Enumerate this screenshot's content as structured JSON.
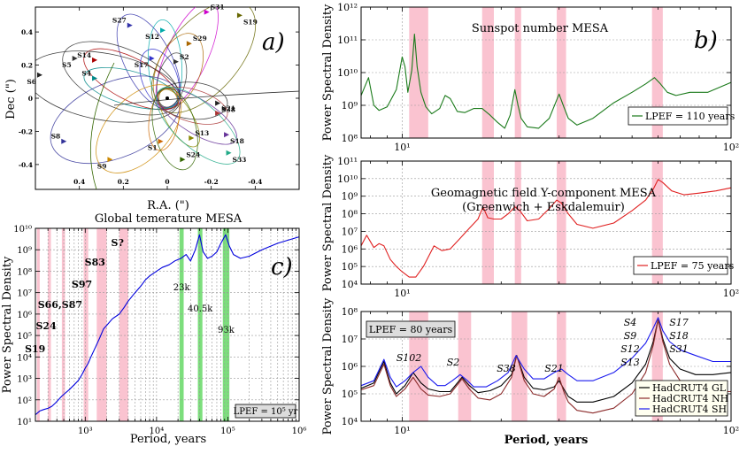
{
  "figure": {
    "description_labels": [
      "a)",
      "b)",
      "c)"
    ]
  },
  "chart_data": [
    {
      "id": "a",
      "type": "scatter",
      "title": "",
      "panel_label": "a)",
      "xlabel": "R.A. (\")",
      "ylabel": "Dec (\")",
      "xlim": [
        0.6,
        -0.6
      ],
      "ylim": [
        -0.55,
        0.55
      ],
      "xticks": [
        "0.4",
        "0.2",
        "0",
        "-0.2",
        "-0.4"
      ],
      "xtick_values": [
        0.4,
        0.2,
        0,
        -0.2,
        -0.4
      ],
      "yticks": [
        "0.4",
        "0.2",
        "0",
        "-0.2",
        "-0.4"
      ],
      "ytick_values": [
        0.4,
        0.2,
        0,
        -0.2,
        -0.4
      ],
      "stars": [
        {
          "name": "S31",
          "ra": -0.18,
          "dec": 0.52,
          "color": "#cc00cc"
        },
        {
          "name": "S19",
          "ra": -0.33,
          "dec": 0.5,
          "color": "#666600"
        },
        {
          "name": "S27",
          "ra": 0.17,
          "dec": 0.44,
          "color": "#3333aa"
        },
        {
          "name": "S12",
          "ra": 0.02,
          "dec": 0.41,
          "color": "#00aaaa"
        },
        {
          "name": "S29",
          "ra": -0.1,
          "dec": 0.33,
          "color": "#aa6600"
        },
        {
          "name": "S5",
          "ra": 0.42,
          "dec": 0.24,
          "color": "#333333"
        },
        {
          "name": "S14",
          "ra": 0.33,
          "dec": 0.23,
          "color": "#aa0000"
        },
        {
          "name": "S17",
          "ra": 0.07,
          "dec": 0.24,
          "color": "#3333cc"
        },
        {
          "name": "S2",
          "ra": -0.04,
          "dec": 0.22,
          "color": "#333333"
        },
        {
          "name": "S6",
          "ra": 0.58,
          "dec": 0.14,
          "color": "#222222"
        },
        {
          "name": "S4",
          "ra": 0.33,
          "dec": 0.12,
          "color": "#008888"
        },
        {
          "name": "S38",
          "ra": -0.23,
          "dec": -0.03,
          "color": "#222222"
        },
        {
          "name": "S21",
          "ra": -0.23,
          "dec": -0.09,
          "color": "#aa3333"
        },
        {
          "name": "S18",
          "ra": -0.27,
          "dec": -0.22,
          "color": "#663399"
        },
        {
          "name": "S8",
          "ra": 0.47,
          "dec": -0.26,
          "color": "#333399"
        },
        {
          "name": "S1",
          "ra": 0.03,
          "dec": -0.26,
          "color": "#cc6600"
        },
        {
          "name": "S13",
          "ra": -0.11,
          "dec": -0.24,
          "color": "#888800"
        },
        {
          "name": "S9",
          "ra": 0.26,
          "dec": -0.37,
          "color": "#cc8800"
        },
        {
          "name": "S24",
          "ra": -0.07,
          "dec": -0.37,
          "color": "#336600"
        },
        {
          "name": "S33",
          "ra": -0.28,
          "dec": -0.33,
          "color": "#22aa88"
        }
      ]
    },
    {
      "id": "b1",
      "type": "line",
      "title": "Sunspot number MESA",
      "panel_label": "b)",
      "xlabel": "",
      "ylabel": "Power Spectral Density",
      "xscale": "log",
      "yscale": "log",
      "xlim": [
        7.5,
        100
      ],
      "ylim": [
        100000000.0,
        1000000000000.0
      ],
      "xticks": [
        "10¹",
        "10²"
      ],
      "yticks": [
        "10⁸",
        "10⁹",
        "10¹⁰",
        "10¹¹",
        "10¹²"
      ],
      "legend": "LPEF = 110 years",
      "legend_location": "bottom-right",
      "shaded_periods": [
        [
          10.5,
          12.0
        ],
        [
          17.5,
          19.0
        ],
        [
          22.0,
          23.0
        ],
        [
          29.5,
          31.5
        ],
        [
          57.5,
          62.0
        ]
      ],
      "series": [
        {
          "name": "Sunspot number MESA",
          "color": "#1a7a1a",
          "x": [
            7.5,
            7.9,
            8.2,
            8.5,
            9.0,
            9.6,
            10.0,
            10.2,
            10.4,
            10.7,
            10.9,
            11.1,
            11.4,
            11.8,
            12.3,
            13.0,
            13.5,
            14.0,
            14.7,
            15.5,
            16.5,
            17.5,
            18.5,
            19.5,
            20.5,
            21.3,
            22.0,
            22.5,
            23.0,
            24.0,
            26.0,
            28.0,
            30.0,
            31.0,
            32.0,
            34.0,
            38.0,
            44.0,
            50.0,
            55.0,
            58.5,
            61.0,
            64.0,
            68.0,
            75.0,
            85.0,
            100.0
          ],
          "y": [
            2000000000.0,
            7000000000.0,
            1000000000.0,
            700000000.0,
            900000000.0,
            3000000000.0,
            30000000000.0,
            15000000000.0,
            2500000000.0,
            12000000000.0,
            150000000000.0,
            15000000000.0,
            2500000000.0,
            900000000.0,
            550000000.0,
            800000000.0,
            2000000000.0,
            1600000000.0,
            650000000.0,
            600000000.0,
            800000000.0,
            800000000.0,
            500000000.0,
            300000000.0,
            200000000.0,
            500000000.0,
            3000000000.0,
            1000000000.0,
            400000000.0,
            220000000.0,
            200000000.0,
            400000000.0,
            2200000000.0,
            900000000.0,
            400000000.0,
            250000000.0,
            400000000.0,
            1200000000.0,
            2500000000.0,
            4500000000.0,
            7000000000.0,
            4500000000.0,
            2500000000.0,
            2000000000.0,
            2500000000.0,
            2500000000.0,
            5000000000.0
          ]
        }
      ]
    },
    {
      "id": "b2",
      "type": "line",
      "title": "Geomagnetic field Y-component MESA",
      "subtitle": "(Greenwich + Eskdalemuir)",
      "xlabel": "",
      "ylabel": "Power Spectral Density",
      "xscale": "log",
      "yscale": "log",
      "xlim": [
        7.5,
        100
      ],
      "ylim": [
        10000.0,
        100000000000.0
      ],
      "xticks": [
        "10¹",
        "10²"
      ],
      "yticks": [
        "10⁴",
        "10⁵",
        "10⁶",
        "10⁷",
        "10⁸",
        "10⁹",
        "10¹⁰",
        "10¹¹"
      ],
      "legend": "LPEF = 75 years",
      "legend_location": "bottom-right",
      "shaded_periods": [
        [
          17.5,
          19.0
        ],
        [
          22.0,
          23.0
        ],
        [
          29.5,
          31.5
        ],
        [
          57.5,
          62.0
        ]
      ],
      "series": [
        {
          "name": "Geomagnetic field Y-component MESA",
          "color": "#e02020",
          "x": [
            7.5,
            7.8,
            8.2,
            8.5,
            8.8,
            9.2,
            9.6,
            10.0,
            10.5,
            11.0,
            11.6,
            12.5,
            13.2,
            14.0,
            15.0,
            16.0,
            17.0,
            17.6,
            18.2,
            19.0,
            20.0,
            21.0,
            22.0,
            22.8,
            24.0,
            26.0,
            28.0,
            29.5,
            30.5,
            32.0,
            34.0,
            38.0,
            44.0,
            50.0,
            55.0,
            58.0,
            60.0,
            62.0,
            66.0,
            72.0,
            80.0,
            90.0,
            100.0
          ],
          "y": [
            1500000.0,
            6000000.0,
            1200000.0,
            2000000.0,
            1500000.0,
            250000.0,
            100000.0,
            50000.0,
            25000.0,
            25000.0,
            100000.0,
            1500000.0,
            800000.0,
            1000000.0,
            4000000.0,
            15000000.0,
            50000000.0,
            250000000.0,
            60000000.0,
            50000000.0,
            50000000.0,
            100000000.0,
            250000000.0,
            150000000.0,
            40000000.0,
            50000000.0,
            200000000.0,
            600000000.0,
            400000000.0,
            100000000.0,
            25000000.0,
            15000000.0,
            30000000.0,
            150000000.0,
            600000000.0,
            2500000000.0,
            9000000000.0,
            6000000000.0,
            2000000000.0,
            1200000000.0,
            1500000000.0,
            2000000000.0,
            3000000000.0
          ]
        }
      ]
    },
    {
      "id": "b3",
      "type": "line",
      "title": "",
      "xlabel": "Period, years",
      "ylabel": "Power Spectral Density",
      "xscale": "log",
      "yscale": "log",
      "xlim": [
        7.5,
        100
      ],
      "ylim": [
        10000.0,
        100000000.0
      ],
      "xticks": [
        "10¹",
        "10²"
      ],
      "yticks": [
        "10⁴",
        "10⁵",
        "10⁶",
        "10⁷",
        "10⁸"
      ],
      "legend_box": "LPEF = 80 years",
      "legend_location": "bottom-right",
      "annotations": [
        "S102",
        "S2",
        "S38",
        "S21",
        "S4",
        "S9",
        "S12",
        "S13",
        "S17",
        "S18",
        "S31"
      ],
      "shaded_periods": [
        [
          10.5,
          12.0
        ],
        [
          14.8,
          16.2
        ],
        [
          21.5,
          24.0
        ],
        [
          29.5,
          31.5
        ],
        [
          57.5,
          62.0
        ]
      ],
      "series": [
        {
          "name": "HadCRUT4 GL",
          "color": "#000000",
          "x": [
            7.5,
            8.2,
            8.8,
            9.2,
            9.6,
            10.2,
            10.8,
            11.4,
            12.0,
            13.0,
            14.0,
            15.2,
            16.0,
            17.0,
            18.5,
            20.0,
            21.5,
            22.3,
            23.5,
            25.0,
            27.0,
            29.0,
            30.0,
            31.0,
            32.0,
            34.0,
            38.0,
            44.0,
            50.0,
            55.0,
            58.0,
            60.0,
            62.0,
            65.0,
            70.0,
            78.0,
            88.0,
            100.0
          ],
          "y": [
            160000.0,
            250000.0,
            1500000.0,
            250000.0,
            100000.0,
            200000.0,
            600000.0,
            250000.0,
            150000.0,
            120000.0,
            120000.0,
            400000.0,
            200000.0,
            110000.0,
            130000.0,
            200000.0,
            500000.0,
            2500000.0,
            400000.0,
            160000.0,
            140000.0,
            180000.0,
            300000.0,
            150000.0,
            80000.0,
            50000.0,
            50000.0,
            80000.0,
            250000.0,
            1200000.0,
            8000000.0,
            50000000.0,
            10000000.0,
            2000000.0,
            800000.0,
            500000.0,
            500000.0,
            600000.0
          ]
        },
        {
          "name": "HadCRUT4 NH",
          "color": "#8b2a2a",
          "x": [
            7.5,
            8.2,
            8.8,
            9.2,
            9.6,
            10.2,
            10.8,
            11.4,
            12.0,
            13.0,
            14.0,
            15.2,
            16.0,
            17.0,
            18.5,
            20.0,
            21.5,
            22.3,
            23.5,
            25.0,
            27.0,
            29.0,
            30.0,
            31.0,
            32.0,
            34.0,
            38.0,
            44.0,
            50.0,
            55.0,
            58.0,
            60.0,
            62.0,
            65.0,
            70.0,
            78.0,
            88.0,
            100.0
          ],
          "y": [
            140000.0,
            200000.0,
            1200000.0,
            200000.0,
            80000.0,
            150000.0,
            400000.0,
            150000.0,
            90000.0,
            80000.0,
            100000.0,
            350000.0,
            150000.0,
            70000.0,
            60000.0,
            100000.0,
            400000.0,
            2500000.0,
            300000.0,
            100000.0,
            80000.0,
            150000.0,
            400000.0,
            120000.0,
            50000.0,
            25000.0,
            20000.0,
            30000.0,
            100000.0,
            600000.0,
            6000000.0,
            50000000.0,
            8000000.0,
            1200000.0,
            300000.0,
            150000.0,
            120000.0,
            120000.0
          ]
        },
        {
          "name": "HadCRUT4 SH",
          "color": "#1a1aee",
          "x": [
            7.5,
            8.2,
            8.8,
            9.2,
            9.6,
            10.2,
            10.8,
            11.4,
            12.0,
            12.8,
            13.5,
            14.2,
            15.0,
            15.8,
            16.5,
            18.0,
            19.5,
            21.0,
            22.2,
            23.5,
            25.0,
            27.0,
            29.0,
            30.5,
            32.0,
            34.0,
            38.0,
            44.0,
            50.0,
            55.0,
            58.0,
            60.0,
            62.0,
            65.0,
            70.0,
            78.0,
            88.0,
            100.0
          ],
          "y": [
            200000.0,
            300000.0,
            1800000.0,
            400000.0,
            180000.0,
            300000.0,
            600000.0,
            1000000.0,
            400000.0,
            200000.0,
            200000.0,
            300000.0,
            500000.0,
            300000.0,
            180000.0,
            180000.0,
            300000.0,
            600000.0,
            2500000.0,
            800000.0,
            350000.0,
            350000.0,
            600000.0,
            800000.0,
            500000.0,
            300000.0,
            300000.0,
            600000.0,
            2000000.0,
            7000000.0,
            25000000.0,
            60000000.0,
            20000000.0,
            8000000.0,
            4000000.0,
            2500000.0,
            1500000.0,
            1500000.0
          ]
        }
      ]
    },
    {
      "id": "c",
      "type": "line",
      "title": "Global temerature MESA",
      "panel_label": "c)",
      "xlabel": "Period, years",
      "ylabel": "Power Spectral Density",
      "xscale": "log",
      "yscale": "log",
      "xlim": [
        200,
        1000000
      ],
      "ylim": [
        10,
        10000000000.0
      ],
      "xticks": [
        "10³",
        "10⁴",
        "10⁵",
        "10⁶"
      ],
      "yticks": [
        "10¹",
        "10²",
        "10³",
        "10⁴",
        "10⁵",
        "10⁶",
        "10⁷",
        "10⁸",
        "10⁹",
        "10¹⁰"
      ],
      "legend_box": "LPEF = 10⁵ yr",
      "legend_location": "bottom-right",
      "pink_bands": [
        [
          210,
          230
        ],
        [
          300,
          330
        ],
        [
          470,
          520
        ],
        [
          950,
          1100
        ],
        [
          1450,
          2000
        ],
        [
          3000,
          4000
        ]
      ],
      "pink_band_labels": [
        "S19",
        "S24",
        "S66,S87",
        "S97",
        "S83",
        "S?"
      ],
      "green_bands": [
        [
          21000,
          24000
        ],
        [
          38000,
          44000
        ],
        [
          85000,
          105000
        ]
      ],
      "green_band_labels": [
        "23k",
        "40.5k",
        "93k"
      ],
      "series": [
        {
          "name": "Global temerature MESA",
          "color": "#0000dd",
          "x": [
            200,
            230,
            260,
            300,
            340,
            380,
            420,
            470,
            520,
            600,
            700,
            800,
            900,
            1000,
            1100,
            1200,
            1400,
            1600,
            1800,
            2000,
            2400,
            3000,
            3500,
            4000,
            5000,
            6000,
            7000,
            8000,
            10000,
            12000,
            15000,
            18000,
            22000,
            26000,
            30000,
            35000,
            40000,
            45000,
            52000,
            60000,
            70000,
            80000,
            93000,
            105000,
            120000,
            150000,
            200000,
            300000,
            500000,
            1000000
          ],
          "y": [
            20,
            30,
            35,
            40,
            50,
            70,
            100,
            150,
            200,
            300,
            500,
            800,
            1500,
            3000,
            5000,
            10000,
            30000,
            80000,
            200000,
            300000,
            600000,
            1000000,
            2000000,
            4000000,
            10000000,
            20000000,
            40000000,
            60000000,
            100000000,
            150000000,
            200000000,
            300000000,
            400000000,
            600000000,
            300000000,
            1000000000,
            5000000000,
            800000000,
            400000000,
            500000000,
            800000000,
            2000000000,
            5000000000,
            1500000000,
            600000000,
            400000000,
            500000000,
            1000000000,
            2000000000,
            4000000000
          ]
        }
      ]
    }
  ]
}
